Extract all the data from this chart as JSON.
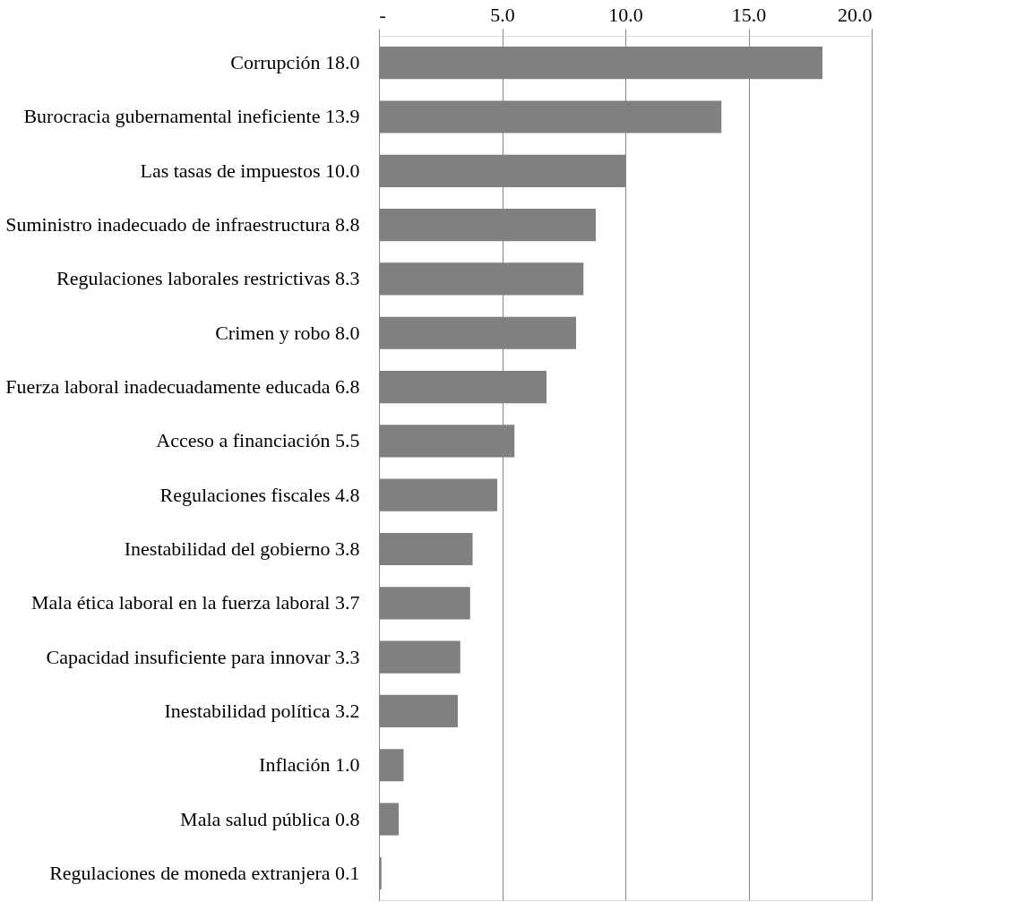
{
  "chart_data": {
    "type": "bar",
    "orientation": "horizontal",
    "categories": [
      "Corrupción 18.0",
      "Burocracia gubernamental ineficiente 13.9",
      "Las tasas de impuestos 10.0",
      "Suministro inadecuado de infraestructura 8.8",
      "Regulaciones laborales restrictivas 8.3",
      "Crimen y robo 8.0",
      "Fuerza laboral inadecuadamente educada 6.8",
      "Acceso a financiación 5.5",
      "Regulaciones fiscales 4.8",
      "Inestabilidad del gobierno 3.8",
      "Mala ética laboral en la fuerza laboral 3.7",
      "Capacidad insuficiente para innovar 3.3",
      "Inestabilidad política 3.2",
      "Inflación 1.0",
      "Mala salud pública 0.8",
      "Regulaciones de moneda extranjera 0.1"
    ],
    "values": [
      18.0,
      13.9,
      10.0,
      8.8,
      8.3,
      8.0,
      6.8,
      5.5,
      4.8,
      3.8,
      3.7,
      3.3,
      3.2,
      1.0,
      0.8,
      0.1
    ],
    "color": "#808080",
    "xlim": [
      0,
      20
    ],
    "xticks": [
      {
        "value": 0,
        "label": "-"
      },
      {
        "value": 5,
        "label": "5.0"
      },
      {
        "value": 10,
        "label": "10.0"
      },
      {
        "value": 15,
        "label": "15.0"
      },
      {
        "value": 20,
        "label": "20.0"
      }
    ],
    "grid": "x"
  }
}
